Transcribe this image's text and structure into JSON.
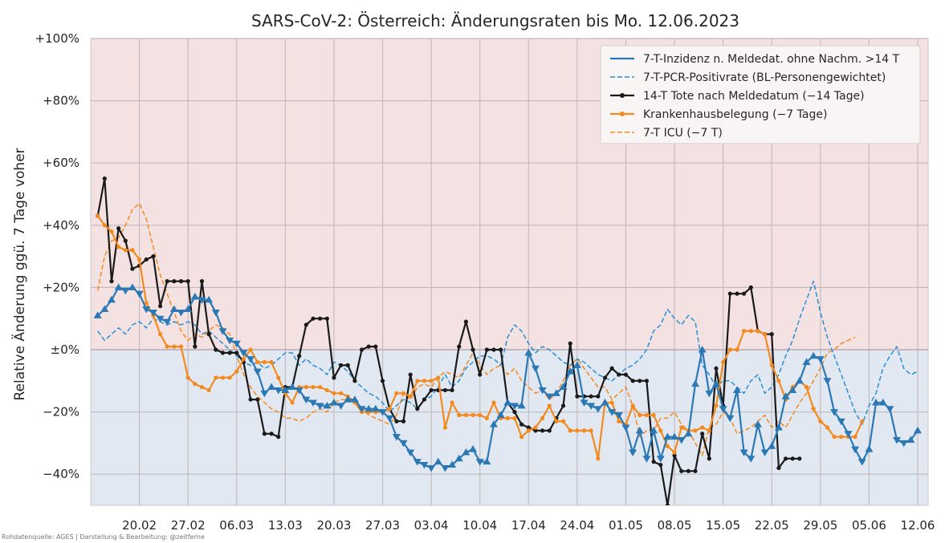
{
  "chart_data": {
    "type": "line",
    "title": "SARS-CoV-2: Österreich: Änderungsraten bis Mo. 12.06.2023",
    "ylabel": "Relative Änderung ggü. 7 Tage voher",
    "xlabel": "",
    "credit": "Rohdatenquelle: AGES | Darstellung & Bearbeitung: @zeitferne",
    "ylim": [
      -50,
      100
    ],
    "xlim": [
      0,
      118
    ],
    "y_ticks": [
      {
        "value": 100,
        "label": "+100%"
      },
      {
        "value": 80,
        "label": "+80%"
      },
      {
        "value": 60,
        "label": "+60%"
      },
      {
        "value": 40,
        "label": "+40%"
      },
      {
        "value": 20,
        "label": "+20%"
      },
      {
        "value": 0,
        "label": "±0%"
      },
      {
        "value": -20,
        "label": "−20%"
      },
      {
        "value": -40,
        "label": "−40%"
      }
    ],
    "x_ticks": [
      {
        "value": 6,
        "label": "20.02"
      },
      {
        "value": 13,
        "label": "27.02"
      },
      {
        "value": 20,
        "label": "06.03"
      },
      {
        "value": 27,
        "label": "13.03"
      },
      {
        "value": 34,
        "label": "20.03"
      },
      {
        "value": 41,
        "label": "27.03"
      },
      {
        "value": 48,
        "label": "03.04"
      },
      {
        "value": 55,
        "label": "10.04"
      },
      {
        "value": 62,
        "label": "17.04"
      },
      {
        "value": 69,
        "label": "24.04"
      },
      {
        "value": 76,
        "label": "01.05"
      },
      {
        "value": 83,
        "label": "08.05"
      },
      {
        "value": 90,
        "label": "15.05"
      },
      {
        "value": 97,
        "label": "22.05"
      },
      {
        "value": 104,
        "label": "29.05"
      },
      {
        "value": 111,
        "label": "05.06"
      },
      {
        "value": 118,
        "label": "12.06"
      }
    ],
    "background": {
      "positive": "#f4e2e3",
      "negative": "#e2e8f2"
    },
    "grid": true,
    "legend_position": "top-right",
    "series": [
      {
        "name": "7-T-Inzidenz n. Meldedat. ohne Nachm. >14 T",
        "color": "#2a78b4",
        "style": "solid",
        "marker": "triangle",
        "x": [
          0,
          1,
          2,
          3,
          4,
          5,
          6,
          7,
          8,
          9,
          10,
          11,
          12,
          13,
          14,
          15,
          16,
          17,
          18,
          19,
          20,
          21,
          22,
          23,
          24,
          25,
          26,
          27,
          28,
          29,
          30,
          31,
          32,
          33,
          34,
          35,
          36,
          37,
          38,
          39,
          40,
          41,
          42,
          43,
          44,
          45,
          46,
          47,
          48,
          49,
          50,
          51,
          52,
          53,
          54,
          55,
          56,
          57,
          58,
          59,
          60,
          61,
          62,
          63,
          64,
          65,
          66,
          67,
          68,
          69,
          70,
          71,
          72,
          73,
          74,
          75,
          76,
          77,
          78,
          79,
          80,
          81,
          82,
          83,
          84,
          85,
          86,
          87,
          88,
          89,
          90,
          91,
          92,
          93,
          94,
          95,
          96,
          97,
          98,
          99,
          100,
          101,
          102,
          103,
          104,
          105,
          106,
          107,
          108,
          109,
          110,
          111,
          112,
          113,
          114,
          115,
          116,
          117,
          118
        ],
        "y": [
          11,
          13,
          16,
          20,
          19,
          20,
          18,
          13,
          12,
          10,
          9,
          13,
          12,
          13,
          17,
          16,
          16,
          12,
          6,
          3,
          2,
          -1,
          -3,
          -7,
          -14,
          -12,
          -13,
          -13,
          -12,
          -13,
          -16,
          -17,
          -18,
          -18,
          -17,
          -18,
          -16,
          -16,
          -19,
          -19,
          -19,
          -20,
          -22,
          -28,
          -30,
          -33,
          -36,
          -37,
          -38,
          -36,
          -38,
          -37,
          -35,
          -33,
          -32,
          -36,
          -36,
          -24,
          -21,
          -17,
          -18,
          -18,
          -1,
          -6,
          -13,
          -15,
          -14,
          -12,
          -7,
          -5,
          -17,
          -18,
          -19,
          -17,
          -20,
          -21,
          -25,
          -33,
          -26,
          -35,
          -26,
          -35,
          -28,
          -28,
          -29,
          -27,
          -11,
          0,
          -14,
          -11,
          -19,
          -22,
          -13,
          -33,
          -35,
          -24,
          -33,
          -31,
          -25,
          -15,
          -13,
          -10,
          -4,
          -2,
          -3,
          -10,
          -20,
          -23,
          -27,
          -32,
          -36,
          -32,
          -17,
          -17,
          -19,
          -29,
          -30,
          -29,
          -26
        ]
      },
      {
        "name": "7-T-PCR-Positivrate (BL-Personengewichtet)",
        "color": "#2a8fd0",
        "style": "dashed",
        "marker": "none",
        "x": [
          0,
          1,
          2,
          3,
          4,
          5,
          6,
          7,
          8,
          9,
          10,
          11,
          12,
          13,
          14,
          15,
          16,
          17,
          18,
          19,
          20,
          21,
          22,
          23,
          24,
          25,
          26,
          27,
          28,
          29,
          30,
          31,
          32,
          33,
          34,
          35,
          36,
          37,
          38,
          39,
          40,
          41,
          42,
          43,
          44,
          45,
          46,
          47,
          48,
          49,
          50,
          51,
          52,
          53,
          54,
          55,
          56,
          57,
          58,
          59,
          60,
          61,
          62,
          63,
          64,
          65,
          66,
          67,
          68,
          69,
          70,
          71,
          72,
          73,
          74,
          75,
          76,
          77,
          78,
          79,
          80,
          81,
          82,
          83,
          84,
          85,
          86,
          87,
          88,
          89,
          90,
          91,
          92,
          93,
          94,
          95,
          96,
          97,
          98,
          99,
          100,
          101,
          102,
          103,
          104,
          105,
          106,
          107,
          108,
          109,
          110,
          111,
          112,
          113,
          114,
          115,
          116,
          117,
          118
        ],
        "y": [
          6,
          3,
          5,
          7,
          5,
          8,
          9,
          7,
          10,
          9,
          8,
          9,
          8,
          9,
          8,
          5,
          6,
          4,
          2,
          0,
          -2,
          -4,
          -5,
          -4,
          -6,
          -5,
          -3,
          -1,
          -1,
          -5,
          -3,
          -5,
          -6,
          -8,
          -4,
          -5,
          -7,
          -10,
          -12,
          -14,
          -15,
          -17,
          -20,
          -18,
          -16,
          -17,
          -19,
          -16,
          -15,
          -12,
          -8,
          -12,
          -10,
          -6,
          -4,
          -2,
          -2,
          -3,
          -5,
          4,
          8,
          6,
          2,
          -1,
          1,
          0,
          -2,
          -4,
          -5,
          -3,
          -4,
          -6,
          -8,
          -9,
          -10,
          -8,
          -6,
          -5,
          -3,
          0,
          6,
          8,
          13,
          10,
          8,
          11,
          9,
          -5,
          -8,
          -12,
          -10,
          -10,
          -12,
          -14,
          -10,
          -8,
          -14,
          -12,
          -8,
          -2,
          3,
          10,
          16,
          22,
          12,
          4,
          -2,
          -8,
          -14,
          -20,
          -24,
          -18,
          -14,
          -6,
          -2,
          1,
          -6,
          -8,
          -7
        ]
      },
      {
        "name": "14-T Tote nach Meldedatum (−14 Tage)",
        "color": "#1a1a1a",
        "style": "solid",
        "marker": "dot",
        "x": [
          0,
          1,
          2,
          3,
          4,
          5,
          6,
          7,
          8,
          9,
          10,
          11,
          12,
          13,
          14,
          15,
          16,
          17,
          18,
          19,
          20,
          21,
          22,
          23,
          24,
          25,
          26,
          27,
          28,
          29,
          30,
          31,
          32,
          33,
          34,
          35,
          36,
          37,
          38,
          39,
          40,
          41,
          42,
          43,
          44,
          45,
          46,
          47,
          48,
          49,
          50,
          51,
          52,
          53,
          54,
          55,
          56,
          57,
          58,
          59,
          60,
          61,
          62,
          63,
          64,
          65,
          66,
          67,
          68,
          69,
          70,
          71,
          72,
          73,
          74,
          75,
          76,
          77,
          78,
          79,
          80,
          81,
          82,
          83,
          84,
          85,
          86,
          87,
          88,
          89,
          90,
          91,
          92,
          93,
          94,
          95,
          96,
          97,
          98,
          99,
          100,
          101,
          102,
          103,
          104
        ],
        "y": [
          43,
          55,
          22,
          39,
          35,
          26,
          27,
          29,
          30,
          14,
          22,
          22,
          22,
          22,
          1,
          22,
          5,
          0,
          -1,
          -1,
          -1,
          -4,
          -16,
          -16,
          -27,
          -27,
          -28,
          -12,
          -12,
          -2,
          8,
          10,
          10,
          10,
          -9,
          -5,
          -5,
          -10,
          0,
          1,
          1,
          -10,
          -19,
          -23,
          -23,
          -8,
          -19,
          -16,
          -13,
          -13,
          -13,
          -13,
          1,
          9,
          0,
          -8,
          0,
          0,
          0,
          -17,
          -20,
          -24,
          -25,
          -26,
          -26,
          -26,
          -22,
          -18,
          2,
          -15,
          -15,
          -15,
          -15,
          -9,
          -6,
          -8,
          -8,
          -10,
          -10,
          -10,
          -36,
          -37,
          -50,
          -34,
          -39,
          -39,
          -39,
          -27,
          -35,
          -6,
          -18,
          18,
          18,
          18,
          20,
          6,
          5,
          5,
          -38,
          -35,
          -35,
          -35,
          null,
          null,
          null
        ],
        "note": "x positions 0-104"
      },
      {
        "name": "Krankenhausbelegung (−7 Tage)",
        "color": "#f28a1e",
        "style": "solid",
        "marker": "dot",
        "x": [
          0,
          1,
          2,
          3,
          4,
          5,
          6,
          7,
          8,
          9,
          10,
          11,
          12,
          13,
          14,
          15,
          16,
          17,
          18,
          19,
          20,
          21,
          22,
          23,
          24,
          25,
          26,
          27,
          28,
          29,
          30,
          31,
          32,
          33,
          34,
          35,
          36,
          37,
          38,
          39,
          40,
          41,
          42,
          43,
          44,
          45,
          46,
          47,
          48,
          49,
          50,
          51,
          52,
          53,
          54,
          55,
          56,
          57,
          58,
          59,
          60,
          61,
          62,
          63,
          64,
          65,
          66,
          67,
          68,
          69,
          70,
          71,
          72,
          73,
          74,
          75,
          76,
          77,
          78,
          79,
          80,
          81,
          82,
          83,
          84,
          85,
          86,
          87,
          88,
          89,
          90,
          91,
          92,
          93,
          94,
          95,
          96,
          97,
          98,
          99,
          100,
          101,
          102,
          103,
          104,
          105,
          106,
          107,
          108,
          109,
          110,
          111,
          112
        ],
        "y": [
          43,
          40,
          38,
          33,
          32,
          32,
          29,
          15,
          11,
          5,
          1,
          1,
          1,
          -9,
          -11,
          -12,
          -13,
          -9,
          -9,
          -9,
          -7,
          -3,
          0,
          -4,
          -4,
          -4,
          -9,
          -14,
          -17,
          -12,
          -12,
          -12,
          -12,
          -13,
          -14,
          -14,
          -15,
          -17,
          -20,
          -20,
          -20,
          -20,
          -19,
          -14,
          -14,
          -15,
          -10,
          -10,
          -10,
          -9,
          -25,
          -17,
          -21,
          -21,
          -21,
          -21,
          -22,
          -17,
          -22,
          -22,
          -22,
          -28,
          -26,
          -25,
          -22,
          -18,
          -23,
          -23,
          -26,
          -26,
          -26,
          -26,
          -35,
          -17,
          -17,
          -23,
          -24,
          -18,
          -21,
          -21,
          -21,
          -26,
          -31,
          -33,
          -25,
          -26,
          -26,
          -25,
          -26,
          -18,
          -4,
          0,
          0,
          6,
          6,
          6,
          5,
          -5,
          -10,
          -16,
          -12,
          -10,
          -12,
          -19,
          -23,
          -25,
          -28,
          -28,
          -28,
          -28,
          -23,
          null,
          null
        ],
        "note": "x positions 0-110"
      },
      {
        "name": "7-T ICU (−7 T)",
        "color": "#f28a1e",
        "style": "dashed",
        "marker": "none",
        "x": [
          0,
          1,
          2,
          3,
          4,
          5,
          6,
          7,
          8,
          9,
          10,
          11,
          12,
          13,
          14,
          15,
          16,
          17,
          18,
          19,
          20,
          21,
          22,
          23,
          24,
          25,
          26,
          27,
          28,
          29,
          30,
          31,
          32,
          33,
          34,
          35,
          36,
          37,
          38,
          39,
          40,
          41,
          42,
          43,
          44,
          45,
          46,
          47,
          48,
          49,
          50,
          51,
          52,
          53,
          54,
          55,
          56,
          57,
          58,
          59,
          60,
          61,
          62,
          63,
          64,
          65,
          66,
          67,
          68,
          69,
          70,
          71,
          72,
          73,
          74,
          75,
          76,
          77,
          78,
          79,
          80,
          81,
          82,
          83,
          84,
          85,
          86,
          87,
          88,
          89,
          90,
          91,
          92,
          93,
          94,
          95,
          96,
          97,
          98,
          99,
          100,
          101,
          102,
          103,
          104,
          105,
          106,
          107,
          108,
          109,
          110,
          111,
          112
        ],
        "y": [
          19,
          30,
          35,
          36,
          40,
          45,
          47,
          42,
          33,
          24,
          18,
          12,
          6,
          3,
          5,
          4,
          6,
          8,
          7,
          5,
          -2,
          -8,
          -12,
          -15,
          -17,
          -19,
          -20,
          -22,
          -22,
          -23,
          -22,
          -20,
          -19,
          -20,
          -17,
          -16,
          -16,
          -17,
          -19,
          -21,
          -22,
          -23,
          -24,
          -21,
          -14,
          -16,
          -12,
          -11,
          -12,
          -9,
          -7,
          -8,
          -9,
          -5,
          -1,
          -5,
          -8,
          -6,
          -5,
          -8,
          -6,
          -10,
          -12,
          -14,
          -13,
          -16,
          -14,
          -10,
          -5,
          -3,
          -6,
          -9,
          -12,
          -12,
          -16,
          -14,
          -12,
          -18,
          -28,
          -26,
          -26,
          -22,
          -22,
          -20,
          -24,
          -26,
          -30,
          -34,
          -25,
          -24,
          -20,
          -22,
          -27,
          -26,
          -25,
          -23,
          -21,
          -25,
          -23,
          -25,
          -21,
          -17,
          -14,
          -10,
          -6,
          -1,
          0,
          2,
          3,
          4,
          null,
          null,
          null
        ],
        "note": "x positions 0-109"
      }
    ]
  }
}
